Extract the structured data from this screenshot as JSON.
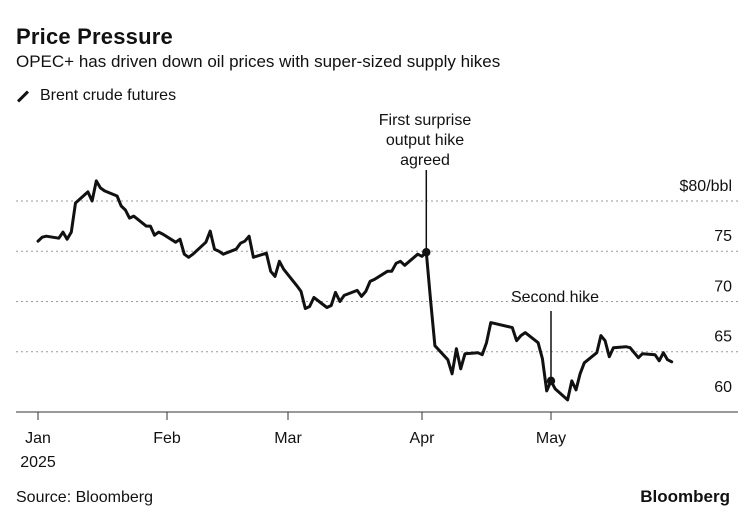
{
  "title": "Price Pressure",
  "subtitle": "OPEC+ has driven down oil prices with super-sized supply hikes",
  "legend_label": "Brent crude futures",
  "source": "Source: Bloomberg",
  "brand": "Bloomberg",
  "chart_data": {
    "type": "line",
    "title": "Price Pressure",
    "subtitle": "OPEC+ has driven down oil prices with super-sized supply hikes",
    "unit": "$80/bbl",
    "grid": true,
    "x_range": [
      "2025-01-02",
      "2025-05-30"
    ],
    "ylim": [
      59,
      80
    ],
    "yticks": [
      {
        "value": 80,
        "label": "$80/bbl"
      },
      {
        "value": 75,
        "label": "75"
      },
      {
        "value": 70,
        "label": "70"
      },
      {
        "value": 65,
        "label": "65"
      },
      {
        "value": 60,
        "label": "60"
      }
    ],
    "xticks": [
      {
        "date": "2025-01-01",
        "label": "Jan",
        "sublabel": "2025"
      },
      {
        "date": "2025-02-01",
        "label": "Feb"
      },
      {
        "date": "2025-03-01",
        "label": "Mar"
      },
      {
        "date": "2025-04-01",
        "label": "Apr"
      },
      {
        "date": "2025-05-01",
        "label": "May"
      }
    ],
    "series": [
      {
        "name": "Brent crude futures",
        "color": "#111111",
        "points": [
          [
            "2025-01-01",
            76.0
          ],
          [
            "2025-01-02",
            76.4
          ],
          [
            "2025-01-03",
            76.5
          ],
          [
            "2025-01-06",
            76.3
          ],
          [
            "2025-01-07",
            76.9
          ],
          [
            "2025-01-08",
            76.2
          ],
          [
            "2025-01-09",
            76.9
          ],
          [
            "2025-01-10",
            79.8
          ],
          [
            "2025-01-13",
            80.9
          ],
          [
            "2025-01-14",
            80.0
          ],
          [
            "2025-01-15",
            82.0
          ],
          [
            "2025-01-16",
            81.3
          ],
          [
            "2025-01-17",
            81.0
          ],
          [
            "2025-01-20",
            80.5
          ],
          [
            "2025-01-21",
            79.5
          ],
          [
            "2025-01-22",
            79.1
          ],
          [
            "2025-01-23",
            78.3
          ],
          [
            "2025-01-24",
            78.5
          ],
          [
            "2025-01-27",
            77.5
          ],
          [
            "2025-01-28",
            77.5
          ],
          [
            "2025-01-29",
            76.6
          ],
          [
            "2025-01-30",
            76.9
          ],
          [
            "2025-01-31",
            76.7
          ],
          [
            "2025-02-03",
            75.9
          ],
          [
            "2025-02-04",
            76.2
          ],
          [
            "2025-02-05",
            74.7
          ],
          [
            "2025-02-06",
            74.4
          ],
          [
            "2025-02-07",
            74.7
          ],
          [
            "2025-02-10",
            75.9
          ],
          [
            "2025-02-11",
            77.0
          ],
          [
            "2025-02-12",
            75.2
          ],
          [
            "2025-02-13",
            75.0
          ],
          [
            "2025-02-14",
            74.7
          ],
          [
            "2025-02-17",
            75.2
          ],
          [
            "2025-02-18",
            75.8
          ],
          [
            "2025-02-19",
            76.0
          ],
          [
            "2025-02-20",
            76.5
          ],
          [
            "2025-02-21",
            74.4
          ],
          [
            "2025-02-24",
            74.8
          ],
          [
            "2025-02-25",
            73.0
          ],
          [
            "2025-02-26",
            72.5
          ],
          [
            "2025-02-27",
            74.0
          ],
          [
            "2025-02-28",
            73.2
          ],
          [
            "2025-03-03",
            71.6
          ],
          [
            "2025-03-04",
            71.0
          ],
          [
            "2025-03-05",
            69.3
          ],
          [
            "2025-03-06",
            69.5
          ],
          [
            "2025-03-07",
            70.4
          ],
          [
            "2025-03-10",
            69.4
          ],
          [
            "2025-03-11",
            69.6
          ],
          [
            "2025-03-12",
            70.9
          ],
          [
            "2025-03-13",
            70.0
          ],
          [
            "2025-03-14",
            70.6
          ],
          [
            "2025-03-17",
            71.1
          ],
          [
            "2025-03-18",
            70.5
          ],
          [
            "2025-03-19",
            71.0
          ],
          [
            "2025-03-20",
            72.0
          ],
          [
            "2025-03-21",
            72.2
          ],
          [
            "2025-03-24",
            73.0
          ],
          [
            "2025-03-25",
            73.0
          ],
          [
            "2025-03-26",
            73.8
          ],
          [
            "2025-03-27",
            74.0
          ],
          [
            "2025-03-28",
            73.6
          ],
          [
            "2025-03-31",
            74.7
          ],
          [
            "2025-04-01",
            74.5
          ],
          [
            "2025-04-02",
            74.9
          ],
          [
            "2025-04-03",
            70.1
          ],
          [
            "2025-04-04",
            65.6
          ],
          [
            "2025-04-07",
            64.2
          ],
          [
            "2025-04-08",
            62.8
          ],
          [
            "2025-04-09",
            65.3
          ],
          [
            "2025-04-10",
            63.3
          ],
          [
            "2025-04-11",
            64.8
          ],
          [
            "2025-04-14",
            64.9
          ],
          [
            "2025-04-15",
            64.7
          ],
          [
            "2025-04-16",
            65.9
          ],
          [
            "2025-04-17",
            67.9
          ],
          [
            "2025-04-22",
            67.4
          ],
          [
            "2025-04-23",
            66.1
          ],
          [
            "2025-04-24",
            66.6
          ],
          [
            "2025-04-25",
            66.9
          ],
          [
            "2025-04-28",
            65.9
          ],
          [
            "2025-04-29",
            64.3
          ],
          [
            "2025-04-30",
            61.1
          ],
          [
            "2025-05-01",
            62.1
          ],
          [
            "2025-05-02",
            61.3
          ],
          [
            "2025-05-05",
            60.2
          ],
          [
            "2025-05-06",
            62.1
          ],
          [
            "2025-05-07",
            61.2
          ],
          [
            "2025-05-08",
            62.8
          ],
          [
            "2025-05-09",
            63.9
          ],
          [
            "2025-05-12",
            64.9
          ],
          [
            "2025-05-13",
            66.6
          ],
          [
            "2025-05-14",
            66.1
          ],
          [
            "2025-05-15",
            64.5
          ],
          [
            "2025-05-16",
            65.4
          ],
          [
            "2025-05-19",
            65.5
          ],
          [
            "2025-05-20",
            65.4
          ],
          [
            "2025-05-21",
            64.9
          ],
          [
            "2025-05-22",
            64.4
          ],
          [
            "2025-05-23",
            64.8
          ],
          [
            "2025-05-26",
            64.7
          ],
          [
            "2025-05-27",
            64.1
          ],
          [
            "2025-05-28",
            64.9
          ],
          [
            "2025-05-29",
            64.2
          ],
          [
            "2025-05-30",
            64.0
          ]
        ]
      }
    ],
    "annotations": [
      {
        "text": [
          "First surprise",
          "output hike",
          "agreed"
        ],
        "date": "2025-04-02",
        "value": 74.9
      },
      {
        "text": [
          "Second hike"
        ],
        "date": "2025-05-01",
        "value": 62.1
      }
    ]
  }
}
